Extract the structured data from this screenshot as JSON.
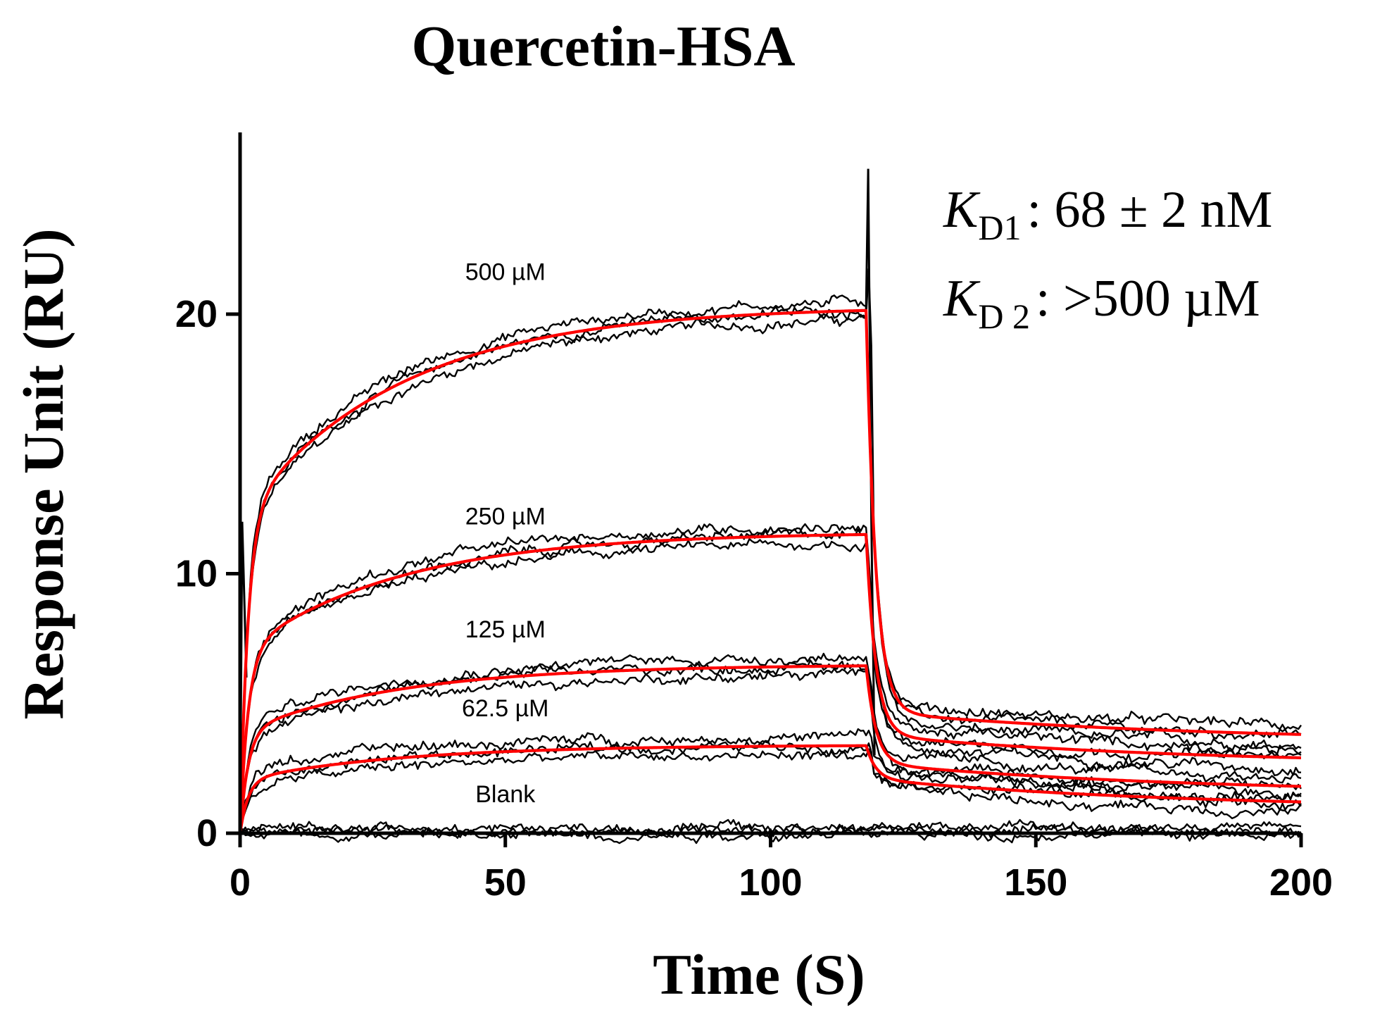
{
  "chart_data": {
    "type": "line",
    "title": "Quercetin-HSA",
    "xlabel": "Time (S)",
    "ylabel": "Response Unit (RU)",
    "xlim": [
      0,
      200
    ],
    "ylim": [
      0,
      27
    ],
    "xticks": [
      0,
      50,
      100,
      150,
      200
    ],
    "xtick_labels": [
      "0",
      "50",
      "100",
      "150",
      "200"
    ],
    "yticks": [
      0,
      10,
      20
    ],
    "ytick_labels": [
      "0",
      "10",
      "20"
    ],
    "grid": false,
    "injection_end_s": 118,
    "series": [
      {
        "name": "500 µM",
        "plateau_ru": 20.3,
        "fit_end_ru": 3.5
      },
      {
        "name": "250 µM",
        "plateau_ru": 11.6,
        "fit_end_ru": 2.6
      },
      {
        "name": "125 µM",
        "plateau_ru": 6.5,
        "fit_end_ru": 1.5
      },
      {
        "name": "62.5 µM",
        "plateau_ru": 3.4,
        "fit_end_ru": 0.9
      },
      {
        "name": "Blank",
        "plateau_ru": 0.1,
        "fit_end_ru": 0.0
      }
    ],
    "annotations": {
      "kd1_symbol": "K",
      "kd1_subscript": "D1",
      "kd1_value": ": 68 ± 2 nM",
      "kd2_symbol": "K",
      "kd2_subscript": "D 2",
      "kd2_value": ": >500  µM"
    },
    "colors": {
      "data": "#000000",
      "fit": "#ff0000"
    }
  }
}
